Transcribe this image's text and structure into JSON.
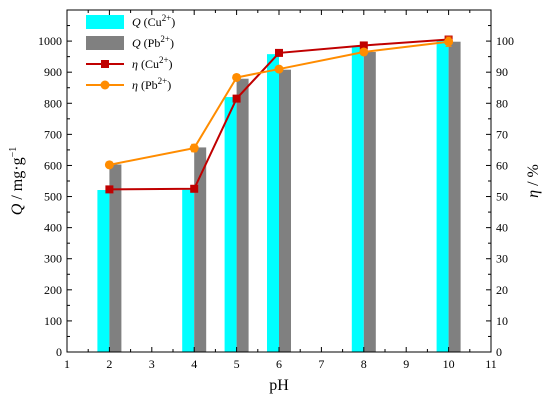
{
  "chart_data": {
    "type": "bar",
    "x": [
      2,
      4,
      5,
      6,
      8,
      10
    ],
    "xlabel": "pH",
    "ylabel_left": {
      "symbol": "Q",
      "unit": "mg·g",
      "exponent": "−1"
    },
    "ylabel_right": {
      "symbol": "η",
      "unit": "%"
    },
    "xlim": [
      1,
      11
    ],
    "ylim_left": [
      0,
      1100
    ],
    "ylim_right": [
      0,
      110
    ],
    "xticks": [
      1,
      2,
      3,
      4,
      5,
      6,
      7,
      8,
      9,
      10,
      11
    ],
    "yticks_left": [
      0,
      100,
      200,
      300,
      400,
      500,
      600,
      700,
      800,
      900,
      1000
    ],
    "yticks_right": [
      0,
      10,
      20,
      30,
      40,
      50,
      60,
      70,
      80,
      90,
      100
    ],
    "grid": false,
    "legend_position": "top-left",
    "series": [
      {
        "name": "Q (Cu2+)",
        "symbol": "Q",
        "ion": "Cu",
        "charge": "2+",
        "kind": "bar",
        "axis": "left",
        "color": "#00ffff",
        "values": [
          521,
          522,
          820,
          958,
          985,
          1001
        ]
      },
      {
        "name": "Q (Pb2+)",
        "symbol": "Q",
        "ion": "Pb",
        "charge": "2+",
        "kind": "bar",
        "axis": "left",
        "color": "#808080",
        "values": [
          603,
          658,
          879,
          908,
          965,
          998
        ]
      },
      {
        "name": "η (Cu2+)",
        "symbol": "η",
        "ion": "Cu",
        "charge": "2+",
        "kind": "line",
        "marker": "square",
        "axis": "right",
        "color": "#c00000",
        "values": [
          52.3,
          52.5,
          81.5,
          96.2,
          98.6,
          100.5
        ],
        "errors": [
          0.8,
          0.8,
          0.8,
          0.8,
          0.8,
          1.0
        ]
      },
      {
        "name": "η (Pb2+)",
        "symbol": "η",
        "ion": "Pb",
        "charge": "2+",
        "kind": "line",
        "marker": "circle",
        "axis": "right",
        "color": "#ff8c00",
        "values": [
          60.2,
          65.6,
          88.3,
          91.0,
          96.5,
          99.8
        ],
        "errors": [
          0.6,
          1.2,
          0.6,
          0.6,
          0.6,
          1.5
        ]
      }
    ]
  }
}
